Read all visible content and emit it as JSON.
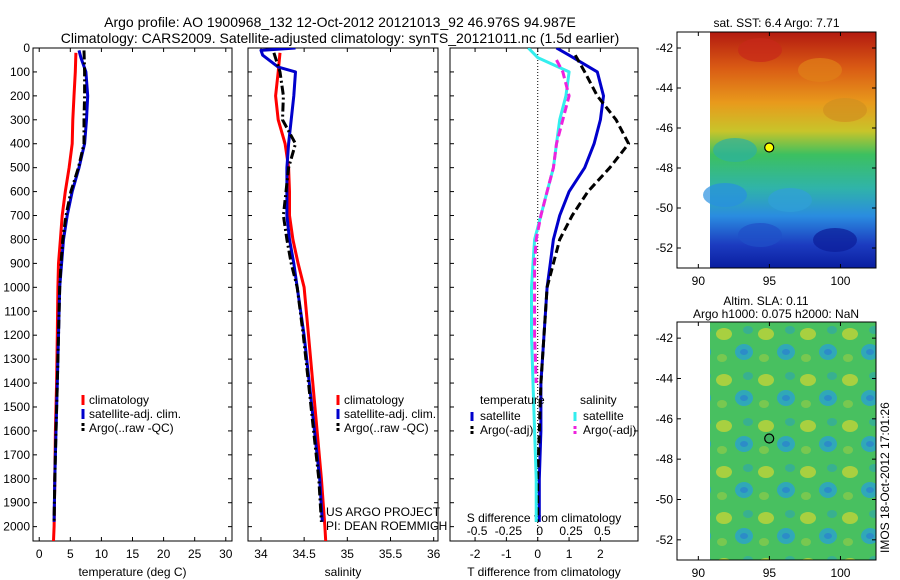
{
  "header": {
    "line1": "Argo profile: AO 1900968_132 12-Oct-2012 20121013_92 46.976S 94.987E",
    "line2": "Climatology: CARS2009. Satellite-adjusted climatology: synTS_20121011.nc (1.5d earlier)"
  },
  "colors": {
    "red": "#ff0000",
    "blue": "#0000cc",
    "black": "#000000",
    "cyan": "#33eeee",
    "magenta": "#ee22dd"
  },
  "chart_data": [
    {
      "type": "line",
      "name": "temperature",
      "xlabel": "temperature (deg C)",
      "xlim": [
        -1,
        31
      ],
      "xticks": [
        0,
        5,
        10,
        15,
        20,
        25,
        30
      ],
      "ylim": [
        2060,
        0
      ],
      "yticks": [
        0,
        100,
        200,
        300,
        400,
        500,
        600,
        700,
        800,
        900,
        1000,
        1100,
        1200,
        1300,
        1400,
        1500,
        1600,
        1700,
        1800,
        1900,
        2000
      ],
      "legend": [
        "climatology",
        "satellite-adj. clim.",
        "Argo(..raw -QC)"
      ],
      "series": [
        {
          "name": "climatology",
          "style": "red",
          "points": [
            [
              5.9,
              20
            ],
            [
              5.8,
              100
            ],
            [
              5.6,
              200
            ],
            [
              5.4,
              300
            ],
            [
              5.3,
              400
            ],
            [
              4.8,
              500
            ],
            [
              4.2,
              600
            ],
            [
              3.7,
              700
            ],
            [
              3.4,
              800
            ],
            [
              3.1,
              900
            ],
            [
              3.0,
              1000
            ],
            [
              2.9,
              1200
            ],
            [
              2.8,
              1400
            ],
            [
              2.6,
              1600
            ],
            [
              2.5,
              1800
            ],
            [
              2.4,
              2000
            ],
            [
              2.3,
              2060
            ]
          ]
        },
        {
          "name": "satellite-adj. clim.",
          "style": "blue",
          "points": [
            [
              6.4,
              10
            ],
            [
              6.7,
              40
            ],
            [
              7.5,
              100
            ],
            [
              7.8,
              200
            ],
            [
              7.6,
              300
            ],
            [
              7.3,
              400
            ],
            [
              6.4,
              500
            ],
            [
              5.3,
              600
            ],
            [
              4.5,
              700
            ],
            [
              3.9,
              800
            ],
            [
              3.6,
              900
            ],
            [
              3.3,
              1000
            ],
            [
              3.1,
              1200
            ],
            [
              2.9,
              1400
            ],
            [
              2.7,
              1600
            ],
            [
              2.5,
              1800
            ],
            [
              2.4,
              1980
            ]
          ]
        },
        {
          "name": "Argo(..raw -QC)",
          "style": "black-dashdot",
          "points": [
            [
              7.2,
              10
            ],
            [
              7.3,
              100
            ],
            [
              7.3,
              200
            ],
            [
              7.2,
              300
            ],
            [
              7.2,
              400
            ],
            [
              6.3,
              500
            ],
            [
              5.1,
              600
            ],
            [
              4.3,
              700
            ],
            [
              3.8,
              800
            ],
            [
              3.5,
              900
            ],
            [
              3.3,
              1000
            ],
            [
              3.1,
              1200
            ],
            [
              2.9,
              1400
            ],
            [
              2.7,
              1600
            ],
            [
              2.5,
              1800
            ],
            [
              2.4,
              1980
            ]
          ]
        }
      ]
    },
    {
      "type": "line",
      "name": "salinity",
      "xlabel": "salinity",
      "xlim": [
        33.85,
        36.05
      ],
      "xticks": [
        34,
        34.5,
        35,
        35.5,
        36
      ],
      "xticklabels": [
        "34",
        "34.5",
        "35",
        "35.5",
        "36"
      ],
      "ylim": [
        2060,
        0
      ],
      "legend": [
        "climatology",
        "satellite-adj. clim.",
        "Argo(..raw -QC)"
      ],
      "credit": [
        "US ARGO PROJECT",
        "PI: DEAN ROEMMICH"
      ],
      "series": [
        {
          "name": "climatology",
          "style": "red",
          "points": [
            [
              34.22,
              20
            ],
            [
              34.2,
              100
            ],
            [
              34.17,
              200
            ],
            [
              34.2,
              300
            ],
            [
              34.28,
              400
            ],
            [
              34.32,
              500
            ],
            [
              34.33,
              600
            ],
            [
              34.33,
              700
            ],
            [
              34.37,
              800
            ],
            [
              34.43,
              900
            ],
            [
              34.5,
              1000
            ],
            [
              34.55,
              1200
            ],
            [
              34.6,
              1400
            ],
            [
              34.65,
              1600
            ],
            [
              34.7,
              1800
            ],
            [
              34.74,
              2000
            ],
            [
              34.75,
              2060
            ]
          ]
        },
        {
          "name": "satellite-adj. clim.",
          "style": "blue",
          "points": [
            [
              34.4,
              0
            ],
            [
              34.0,
              10
            ],
            [
              34.02,
              30
            ],
            [
              34.2,
              80
            ],
            [
              34.4,
              100
            ],
            [
              34.38,
              200
            ],
            [
              34.35,
              300
            ],
            [
              34.32,
              400
            ],
            [
              34.3,
              500
            ],
            [
              34.3,
              600
            ],
            [
              34.3,
              700
            ],
            [
              34.33,
              800
            ],
            [
              34.38,
              900
            ],
            [
              34.42,
              1000
            ],
            [
              34.5,
              1200
            ],
            [
              34.56,
              1400
            ],
            [
              34.62,
              1600
            ],
            [
              34.68,
              1800
            ],
            [
              34.71,
              1980
            ]
          ]
        },
        {
          "name": "Argo(..raw -QC)",
          "style": "black-dashdot",
          "points": [
            [
              34.15,
              20
            ],
            [
              34.22,
              100
            ],
            [
              34.26,
              200
            ],
            [
              34.25,
              300
            ],
            [
              34.4,
              400
            ],
            [
              34.32,
              500
            ],
            [
              34.29,
              600
            ],
            [
              34.26,
              700
            ],
            [
              34.3,
              800
            ],
            [
              34.35,
              900
            ],
            [
              34.42,
              1000
            ],
            [
              34.49,
              1200
            ],
            [
              34.55,
              1400
            ],
            [
              34.61,
              1600
            ],
            [
              34.67,
              1800
            ],
            [
              34.7,
              1980
            ]
          ]
        }
      ]
    },
    {
      "type": "line",
      "name": "difference",
      "xlabel": "T difference from climatology",
      "x2label": "S difference from climatology",
      "xlim": [
        -2.8,
        3.2
      ],
      "xticks": [
        -2,
        -1,
        0,
        1,
        2
      ],
      "x2ticks": [
        "-0.5",
        "-0.25",
        "0",
        "0.25",
        "0.5"
      ],
      "ylim": [
        2060,
        0
      ],
      "legend_groups": [
        {
          "header": "temperature",
          "items": [
            "satellite",
            "Argo(-adj)"
          ]
        },
        {
          "header": "salinity",
          "items": [
            "satellite",
            "Argo(-adj)"
          ]
        }
      ],
      "series": [
        {
          "name": "temperature satellite",
          "style": "blue",
          "points": [
            [
              0.6,
              0
            ],
            [
              1.0,
              30
            ],
            [
              1.9,
              100
            ],
            [
              2.1,
              200
            ],
            [
              2.0,
              300
            ],
            [
              1.8,
              400
            ],
            [
              1.5,
              500
            ],
            [
              1.0,
              600
            ],
            [
              0.7,
              700
            ],
            [
              0.5,
              800
            ],
            [
              0.4,
              900
            ],
            [
              0.3,
              1000
            ],
            [
              0.2,
              1200
            ],
            [
              0.1,
              1400
            ],
            [
              0.1,
              1600
            ],
            [
              0.05,
              1800
            ],
            [
              0.05,
              1980
            ]
          ]
        },
        {
          "name": "temperature Argo(-adj)",
          "style": "black-dash",
          "points": [
            [
              1.2,
              30
            ],
            [
              1.5,
              100
            ],
            [
              1.9,
              200
            ],
            [
              2.5,
              300
            ],
            [
              2.9,
              400
            ],
            [
              2.3,
              500
            ],
            [
              1.6,
              600
            ],
            [
              1.1,
              700
            ],
            [
              0.7,
              800
            ],
            [
              0.5,
              900
            ],
            [
              0.3,
              1000
            ],
            [
              0.2,
              1200
            ],
            [
              0.1,
              1400
            ],
            [
              0.05,
              1600
            ],
            [
              0.0,
              1800
            ],
            [
              0.0,
              1980
            ]
          ]
        },
        {
          "name": "salinity satellite",
          "style": "cyan",
          "points": [
            [
              -0.3,
              0
            ],
            [
              0.0,
              40
            ],
            [
              1.0,
              100
            ],
            [
              0.9,
              200
            ],
            [
              0.7,
              300
            ],
            [
              0.6,
              400
            ],
            [
              0.5,
              500
            ],
            [
              0.3,
              600
            ],
            [
              0.1,
              700
            ],
            [
              -0.1,
              800
            ],
            [
              -0.15,
              900
            ],
            [
              -0.2,
              1000
            ],
            [
              -0.2,
              1200
            ],
            [
              -0.15,
              1400
            ],
            [
              -0.1,
              1600
            ],
            [
              -0.05,
              1800
            ],
            [
              -0.05,
              1980
            ]
          ]
        },
        {
          "name": "salinity Argo(-adj)",
          "style": "magenta-dash",
          "points": [
            [
              0.6,
              50
            ],
            [
              0.8,
              100
            ],
            [
              1.0,
              200
            ],
            [
              0.8,
              300
            ],
            [
              0.6,
              400
            ],
            [
              0.5,
              500
            ],
            [
              0.3,
              600
            ],
            [
              0.1,
              700
            ],
            [
              -0.05,
              800
            ],
            [
              -0.1,
              900
            ],
            [
              -0.1,
              1000
            ],
            [
              -0.1,
              1200
            ],
            [
              -0.05,
              1400
            ]
          ]
        }
      ]
    }
  ],
  "maps": [
    {
      "name": "sst-map",
      "title": "sat. SST: 6.4  Argo: 7.71",
      "xticks": [
        "90",
        "95",
        "100"
      ],
      "yticks": [
        "-42",
        "-44",
        "-46",
        "-48",
        "-50",
        "-52"
      ],
      "marker": {
        "lon": 94.987,
        "lat": -46.976
      }
    },
    {
      "name": "sla-map",
      "title_line1": "Altim. SLA: 0.11",
      "title_line2": "Argo h1000: 0.075 h2000: NaN",
      "xticks": [
        "90",
        "95",
        "100"
      ],
      "yticks": [
        "-42",
        "-44",
        "-46",
        "-48",
        "-50",
        "-52"
      ],
      "marker": {
        "lon": 94.987,
        "lat": -46.976
      },
      "side_label": "IMOS 18-Oct-2012 17:01:26"
    }
  ]
}
